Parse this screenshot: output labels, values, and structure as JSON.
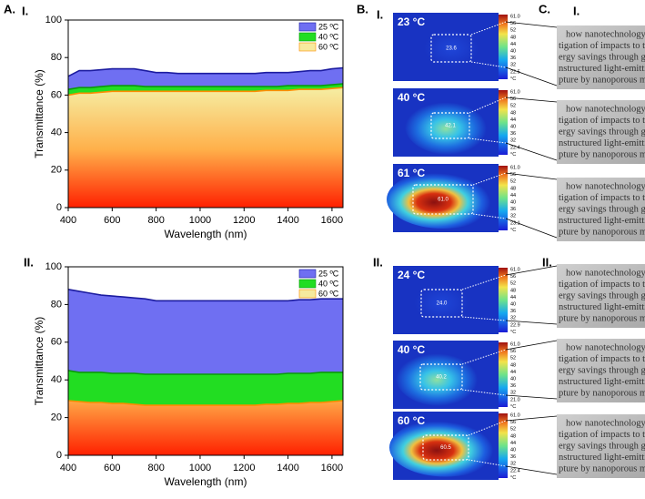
{
  "panel_labels": {
    "a": "A.",
    "a1": "I.",
    "a2": "II.",
    "b": "B.",
    "b1": "I.",
    "b2": "II.",
    "c": "C.",
    "c1": "I.",
    "c2": "II."
  },
  "chart_data": [
    {
      "type": "area",
      "x_label": "Wavelength (nm)",
      "y_label": "Transmittance (%)",
      "x": [
        400,
        450,
        500,
        550,
        600,
        650,
        700,
        750,
        800,
        850,
        900,
        950,
        1000,
        1050,
        1100,
        1150,
        1200,
        1250,
        1300,
        1350,
        1400,
        1450,
        1500,
        1550,
        1600,
        1650
      ],
      "series": [
        {
          "name": "25 ºC",
          "color": "#6f6ff2",
          "line_color": "#1c1ca0",
          "values": [
            70,
            73,
            73,
            73.5,
            74,
            74,
            74,
            73,
            72,
            72,
            71.5,
            71.5,
            71.5,
            71.5,
            71.5,
            71.5,
            71.5,
            71.5,
            72,
            72,
            72,
            72.5,
            73,
            73,
            74,
            74.5
          ]
        },
        {
          "name": "40 ºC",
          "color": "#22dd22",
          "line_color": "#0a9a0a",
          "values": [
            63,
            64,
            64,
            64.5,
            65,
            65,
            65,
            64.5,
            64.5,
            64.5,
            64.5,
            64.5,
            64.5,
            64.5,
            64.5,
            64.5,
            64.5,
            64.5,
            64.5,
            64.5,
            65,
            65,
            65,
            65,
            65.5,
            66
          ]
        },
        {
          "name": "60 ºC",
          "color": "#ff9a00",
          "line_color": "#ff8c00",
          "fill_gradient": [
            "#f6ea9e",
            "#ffb04a",
            "#ff2000"
          ],
          "values": [
            60,
            61,
            61,
            61.5,
            62,
            62,
            62,
            62,
            62,
            62,
            62,
            62,
            62,
            62,
            62,
            62,
            62,
            62,
            62.5,
            62.5,
            62.5,
            63,
            63,
            63,
            63.5,
            64
          ]
        }
      ],
      "xlim": [
        400,
        1650
      ],
      "xticks": [
        400,
        600,
        800,
        1000,
        1200,
        1400,
        1600
      ],
      "ylim": [
        0,
        100
      ],
      "yticks": [
        0,
        20,
        40,
        60,
        80,
        100
      ],
      "legend": "upper right"
    },
    {
      "type": "area",
      "x_label": "Wavelength (nm)",
      "y_label": "Transmittance (%)",
      "x": [
        400,
        450,
        500,
        550,
        600,
        650,
        700,
        750,
        800,
        850,
        900,
        950,
        1000,
        1050,
        1100,
        1150,
        1200,
        1250,
        1300,
        1350,
        1400,
        1450,
        1500,
        1550,
        1600,
        1650
      ],
      "series": [
        {
          "name": "25 ºC",
          "color": "#6f6ff2",
          "line_color": "#1c1ca0",
          "values": [
            88,
            87,
            86,
            85,
            84.5,
            84,
            83.5,
            83,
            82,
            82,
            82,
            82,
            82,
            82,
            82,
            82,
            82,
            82,
            82,
            82,
            82,
            82.5,
            82.5,
            83,
            83,
            83
          ]
        },
        {
          "name": "40 ºC",
          "color": "#22dd22",
          "line_color": "#0a9a0a",
          "values": [
            45,
            44,
            44,
            44,
            43.5,
            43.5,
            43.5,
            43,
            43,
            43,
            43,
            43,
            43,
            43,
            43,
            43,
            43,
            43,
            43,
            43,
            43.5,
            43.5,
            43.5,
            44,
            44,
            44
          ]
        },
        {
          "name": "60 ºC",
          "color": "#ff9a00",
          "line_color": "#ff8c00",
          "fill_gradient": [
            "#f6ea9e",
            "#ffb04a",
            "#ff2000"
          ],
          "values": [
            29,
            28.5,
            28,
            28,
            27.5,
            27.5,
            27,
            26.5,
            26.5,
            26.5,
            26.5,
            26.5,
            26.5,
            26.5,
            26.5,
            26.5,
            26.5,
            26.5,
            27,
            27,
            27.5,
            27.5,
            28,
            28,
            28.5,
            29
          ]
        }
      ],
      "xlim": [
        400,
        1650
      ],
      "xticks": [
        400,
        600,
        800,
        1000,
        1200,
        1400,
        1600
      ],
      "ylim": [
        0,
        100
      ],
      "yticks": [
        0,
        20,
        40,
        60,
        80,
        100
      ],
      "legend": "upper right"
    }
  ],
  "thermal_images": [
    {
      "label": "23 °C",
      "center_value": "23.6",
      "colorbar_labels": [
        "61.0",
        "56",
        "52",
        "48",
        "44",
        "40",
        "36",
        "32",
        "22.5",
        "°C"
      ]
    },
    {
      "label": "40 °C",
      "center_value": "42.1",
      "colorbar_labels": [
        "61.0",
        "56",
        "52",
        "48",
        "44",
        "40",
        "36",
        "32",
        "22.4",
        "°C"
      ]
    },
    {
      "label": "61 °C",
      "center_value": "61.0",
      "colorbar_labels": [
        "61.0",
        "56",
        "52",
        "48",
        "44",
        "40",
        "36",
        "32",
        "23.1",
        "°C"
      ]
    },
    {
      "label": "24 °C",
      "center_value": "24.0",
      "colorbar_labels": [
        "61.0",
        "56",
        "52",
        "48",
        "44",
        "40",
        "36",
        "32",
        "22.9",
        "°C"
      ]
    },
    {
      "label": "40 °C",
      "center_value": "40.2",
      "colorbar_labels": [
        "61.0",
        "56",
        "52",
        "48",
        "44",
        "40",
        "36",
        "32",
        "21.0",
        "°C"
      ]
    },
    {
      "label": "60 °C",
      "center_value": "60.5",
      "colorbar_labels": [
        "61.0",
        "56",
        "52",
        "48",
        "44",
        "40",
        "36",
        "32",
        "22.4",
        "°C"
      ]
    }
  ],
  "photo_text": [
    "how nanotechnology helps",
    "tigation of impacts to the envi",
    "ergy savings through green",
    "nstructured light-emitting",
    "pture by nanoporous mate"
  ]
}
